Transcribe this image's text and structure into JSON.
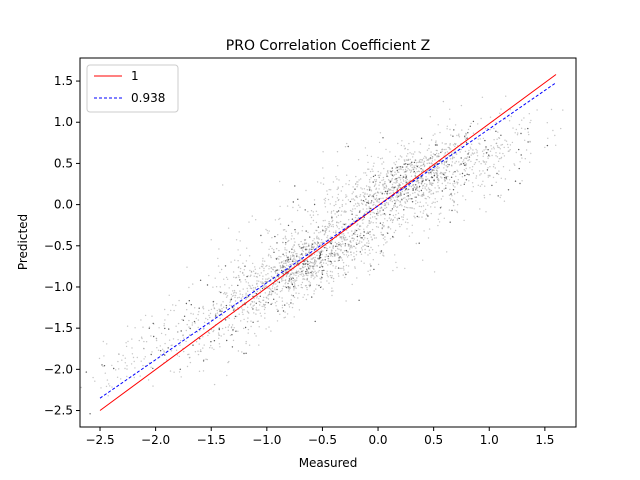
{
  "chart_data": {
    "type": "scatter",
    "title": "PRO Correlation Coefficient Z",
    "xlabel": "Measured",
    "ylabel": "Predicted",
    "xlim": [
      -2.68,
      1.78
    ],
    "ylim": [
      -2.7,
      1.78
    ],
    "xticks": [
      -2.5,
      -2.0,
      -1.5,
      -1.0,
      -0.5,
      0.0,
      0.5,
      1.0,
      1.5
    ],
    "xtick_labels": [
      "−2.5",
      "−2.0",
      "−1.5",
      "−1.0",
      "−0.5",
      "0.0",
      "0.5",
      "1.0",
      "1.5"
    ],
    "yticks": [
      -2.5,
      -2.0,
      -1.5,
      -1.0,
      -0.5,
      0.0,
      0.5,
      1.0,
      1.5
    ],
    "ytick_labels": [
      "−2.5",
      "−2.0",
      "−1.5",
      "−1.0",
      "−0.5",
      "0.0",
      "0.5",
      "1.0",
      "1.5"
    ],
    "grid": false,
    "legend_placement": "top-left",
    "series": [
      {
        "name": "1",
        "kind": "line",
        "style": "solid",
        "color": "#ff0000",
        "x": [
          -2.5,
          1.6
        ],
        "y": [
          -2.5,
          1.58
        ]
      },
      {
        "name": "0.938",
        "kind": "line",
        "style": "dashed",
        "color": "#0000ff",
        "x": [
          -2.5,
          1.6
        ],
        "y": [
          -2.35,
          1.48
        ]
      }
    ],
    "scatter": {
      "color": "#808080",
      "clusters": [
        {
          "cx": -0.7,
          "cy": -0.75,
          "sx": 0.35,
          "sy": 0.18,
          "n": 900
        },
        {
          "cx": 0.35,
          "cy": 0.35,
          "sx": 0.3,
          "sy": 0.18,
          "n": 700
        },
        {
          "cx": -1.4,
          "cy": -1.4,
          "sx": 0.35,
          "sy": 0.25,
          "n": 350
        },
        {
          "cx": -0.1,
          "cy": -0.1,
          "sx": 0.55,
          "sy": 0.35,
          "n": 800
        },
        {
          "cx": 0.9,
          "cy": 0.45,
          "sx": 0.35,
          "sy": 0.2,
          "n": 200
        },
        {
          "cx": -2.2,
          "cy": -1.8,
          "sx": 0.2,
          "sy": 0.2,
          "n": 80
        }
      ]
    }
  }
}
